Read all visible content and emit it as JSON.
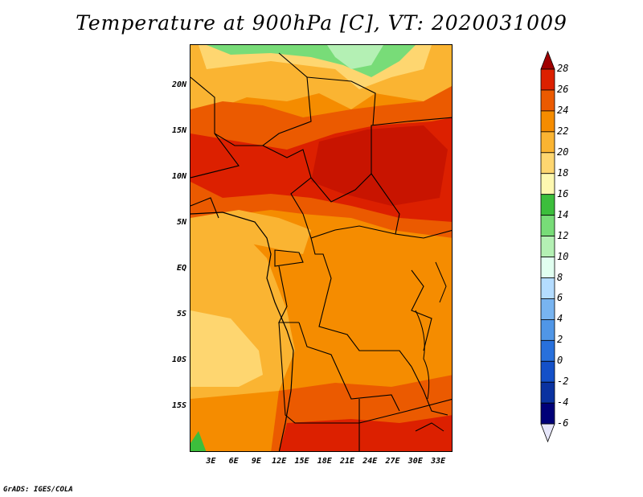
{
  "title": "Temperature at 900hPa [C], VT: 2020031009",
  "credit": "GrADS: IGES/COLA",
  "map": {
    "lon_range": [
      0,
      35
    ],
    "lat_range": [
      -20,
      25
    ],
    "lat_labels": [
      "20N",
      "15N",
      "10N",
      "5N",
      "EQ",
      "5S",
      "10S",
      "15S"
    ],
    "lat_values": [
      20,
      15,
      10,
      5,
      0,
      -5,
      -10,
      -15
    ],
    "lon_labels": [
      "3E",
      "6E",
      "9E",
      "12E",
      "15E",
      "18E",
      "21E",
      "24E",
      "27E",
      "30E",
      "33E"
    ],
    "lon_values": [
      3,
      6,
      9,
      12,
      15,
      18,
      21,
      24,
      27,
      30,
      33
    ]
  },
  "colorbar": {
    "labels": [
      "28",
      "26",
      "24",
      "22",
      "20",
      "18",
      "16",
      "14",
      "12",
      "10",
      "8",
      "6",
      "4",
      "2",
      "0",
      "-2",
      "-4",
      "-6"
    ],
    "colors": [
      "#a00000",
      "#dc2000",
      "#eb5a00",
      "#f58c00",
      "#fab432",
      "#fed670",
      "#fef8b0",
      "#3cbe3c",
      "#78dc78",
      "#b4f0b4",
      "#e1fff0",
      "#b4dcff",
      "#78b4f0",
      "#5096e6",
      "#2870dc",
      "#1450c8",
      "#0a32a0",
      "#000078",
      "#e6e6fa"
    ]
  }
}
